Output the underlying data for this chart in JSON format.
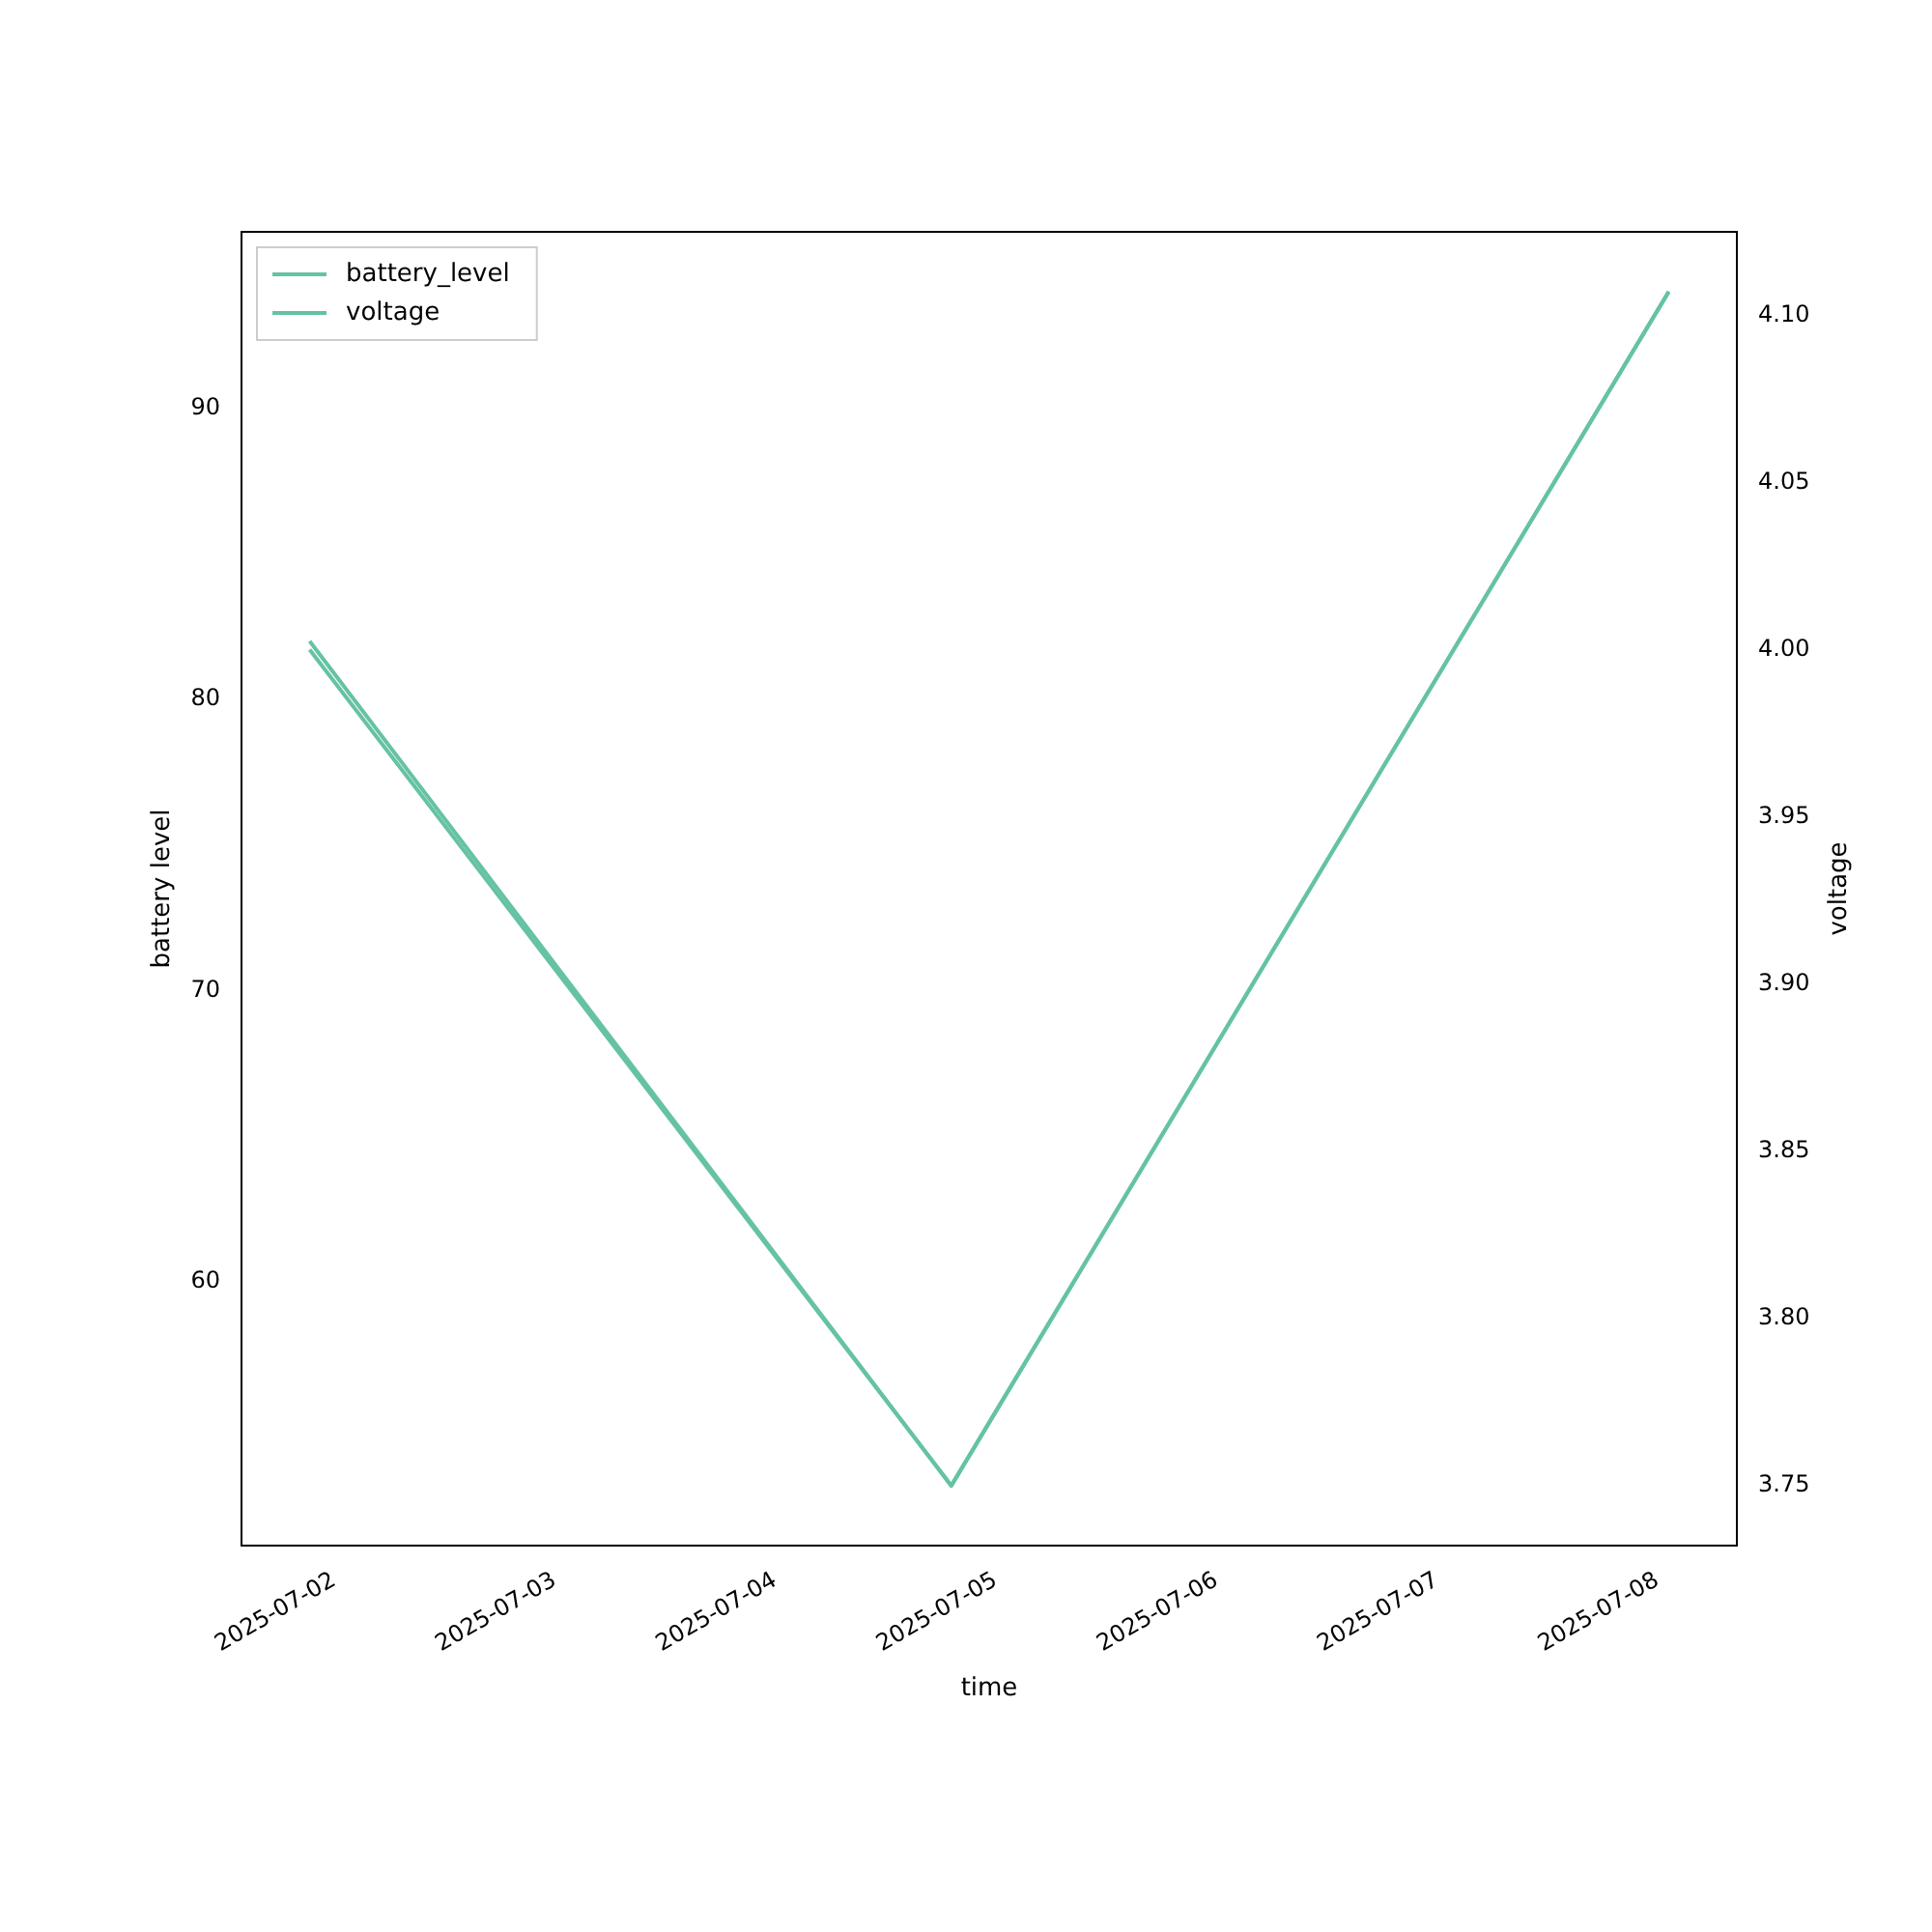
{
  "chart_data": {
    "type": "line",
    "xlabel": "time",
    "ylabel": "battery level",
    "y2label": "voltage",
    "x": [
      "2025-07-01T21:20",
      "2025-07-04T19:10",
      "2025-07-08T01:15"
    ],
    "xlim": [
      "2025-07-01T13:55",
      "2025-07-08T08:40"
    ],
    "xticks": [
      "2025-07-02",
      "2025-07-03",
      "2025-07-04",
      "2025-07-05",
      "2025-07-06",
      "2025-07-07",
      "2025-07-08"
    ],
    "ylim": [
      50.95,
      96.05
    ],
    "yticks": [
      60,
      70,
      80,
      90
    ],
    "y2lim": [
      3.732,
      4.125
    ],
    "y2ticks": [
      {
        "value": 3.75,
        "label": "3.75"
      },
      {
        "value": 3.8,
        "label": "3.80"
      },
      {
        "value": 3.85,
        "label": "3.85"
      },
      {
        "value": 3.9,
        "label": "3.90"
      },
      {
        "value": 3.95,
        "label": "3.95"
      },
      {
        "value": 4.0,
        "label": "4.00"
      },
      {
        "value": 4.05,
        "label": "4.05"
      },
      {
        "value": 4.1,
        "label": "4.10"
      }
    ],
    "series": [
      {
        "name": "battery_level",
        "color": "#66c2a5",
        "values": [
          82,
          53,
          94
        ]
      },
      {
        "name": "voltage",
        "color": "#66c2a5",
        "values": [
          4.0,
          3.75,
          4.107
        ],
        "axis": "y2"
      }
    ],
    "legend": "top left",
    "grid": false,
    "marker": "none",
    "line_style": "solid"
  }
}
